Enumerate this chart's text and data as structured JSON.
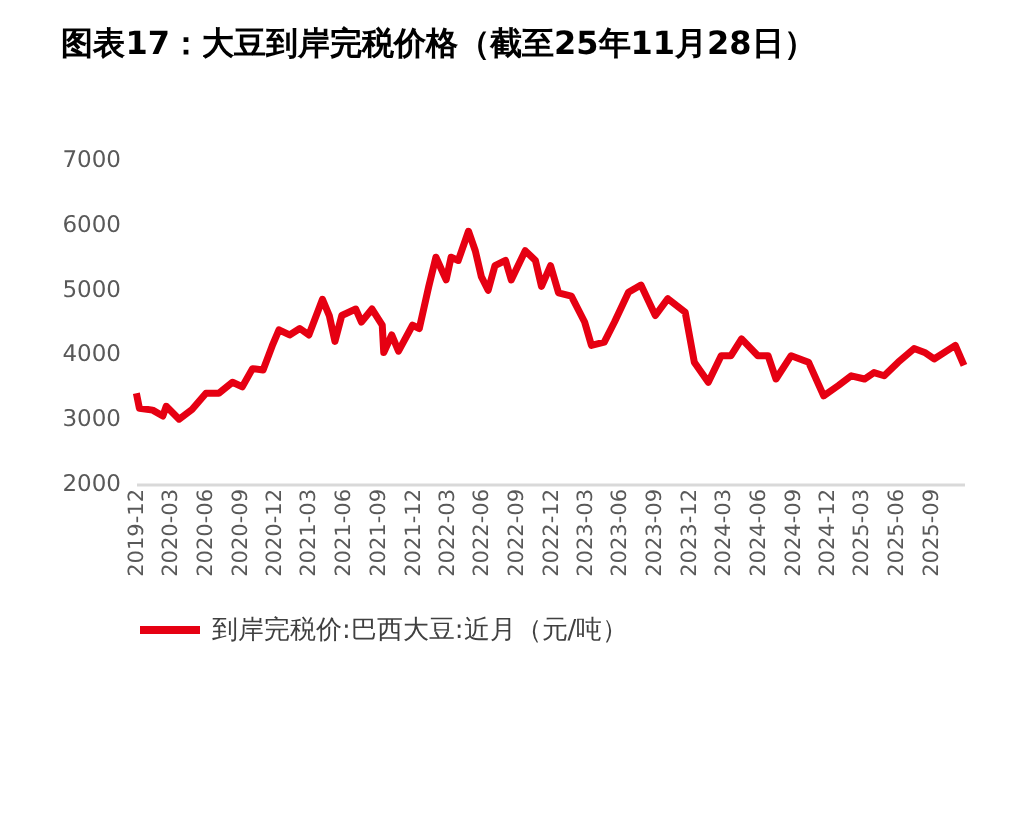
{
  "chart_data": {
    "type": "line",
    "title": "图表17：大豆到岸完税价格（截至25年11月28日）",
    "x": [
      "2019-12-02",
      "2019-12-10",
      "2020-01-14",
      "2020-02-10",
      "2020-02-19",
      "2020-03-24",
      "2020-04-27",
      "2020-06-03",
      "2020-07-07",
      "2020-08-12",
      "2020-09-07",
      "2020-10-04",
      "2020-11-01",
      "2020-11-25",
      "2020-12-13",
      "2021-01-10",
      "2021-02-06",
      "2021-03-02",
      "2021-04-07",
      "2021-04-25",
      "2021-05-10",
      "2021-05-28",
      "2021-07-04",
      "2021-07-19",
      "2021-08-16",
      "2021-09-12",
      "2021-09-16",
      "2021-10-07",
      "2021-10-25",
      "2021-12-01",
      "2021-12-19",
      "2022-01-13",
      "2022-02-01",
      "2022-02-28",
      "2022-03-13",
      "2022-04-01",
      "2022-04-28",
      "2022-05-16",
      "2022-06-01",
      "2022-06-19",
      "2022-07-07",
      "2022-08-04",
      "2022-08-19",
      "2022-09-25",
      "2022-10-22",
      "2022-11-07",
      "2022-12-01",
      "2022-12-22",
      "2023-01-25",
      "2023-03-01",
      "2023-03-19",
      "2023-04-22",
      "2023-05-19",
      "2023-06-25",
      "2023-07-28",
      "2023-09-04",
      "2023-10-07",
      "2023-11-22",
      "2023-12-16",
      "2024-01-22",
      "2024-02-25",
      "2024-03-22",
      "2024-04-19",
      "2024-06-01",
      "2024-06-28",
      "2024-07-19",
      "2024-08-28",
      "2024-10-13",
      "2024-11-22",
      "2024-12-31",
      "2025-02-03",
      "2025-03-10",
      "2025-04-04",
      "2025-05-01",
      "2025-06-07",
      "2025-07-19",
      "2025-08-16",
      "2025-09-10",
      "2025-11-05",
      "2025-11-28"
    ],
    "series": [
      {
        "name": "到岸完税价:巴西大豆:近月（元/吨）",
        "color": "#e60012",
        "values": [
          3400,
          3170,
          3140,
          3050,
          3200,
          3000,
          3150,
          3400,
          3400,
          3570,
          3500,
          3780,
          3760,
          4130,
          4380,
          4300,
          4400,
          4300,
          4850,
          4600,
          4200,
          4600,
          4700,
          4500,
          4700,
          4450,
          4030,
          4300,
          4050,
          4450,
          4400,
          5050,
          5500,
          5150,
          5500,
          5450,
          5900,
          5600,
          5200,
          4990,
          5370,
          5450,
          5150,
          5600,
          5450,
          5050,
          5370,
          4950,
          4900,
          4500,
          4140,
          4190,
          4500,
          4960,
          5070,
          4600,
          4860,
          4650,
          3880,
          3570,
          3980,
          3980,
          4240,
          3980,
          3980,
          3620,
          3980,
          3880,
          3360,
          3520,
          3670,
          3620,
          3720,
          3670,
          3880,
          4090,
          4030,
          3930,
          4140,
          3830
        ]
      }
    ],
    "xlim": [
      "2019-12-01",
      "2025-11-28"
    ],
    "xticks": [
      "2019-12",
      "2020-03",
      "2020-06",
      "2020-09",
      "2020-12",
      "2021-03",
      "2021-06",
      "2021-09",
      "2021-12",
      "2022-03",
      "2022-06",
      "2022-09",
      "2022-12",
      "2023-03",
      "2023-06",
      "2023-09",
      "2023-12",
      "2024-03",
      "2024-06",
      "2024-09",
      "2024-12",
      "2025-03",
      "2025-06",
      "2025-09"
    ],
    "ylim": [
      2000,
      7000
    ],
    "yticks": [
      2000,
      3000,
      4000,
      5000,
      6000,
      7000
    ],
    "grid": false,
    "legend": "bottom",
    "marker": "none",
    "line_style": "solid"
  }
}
